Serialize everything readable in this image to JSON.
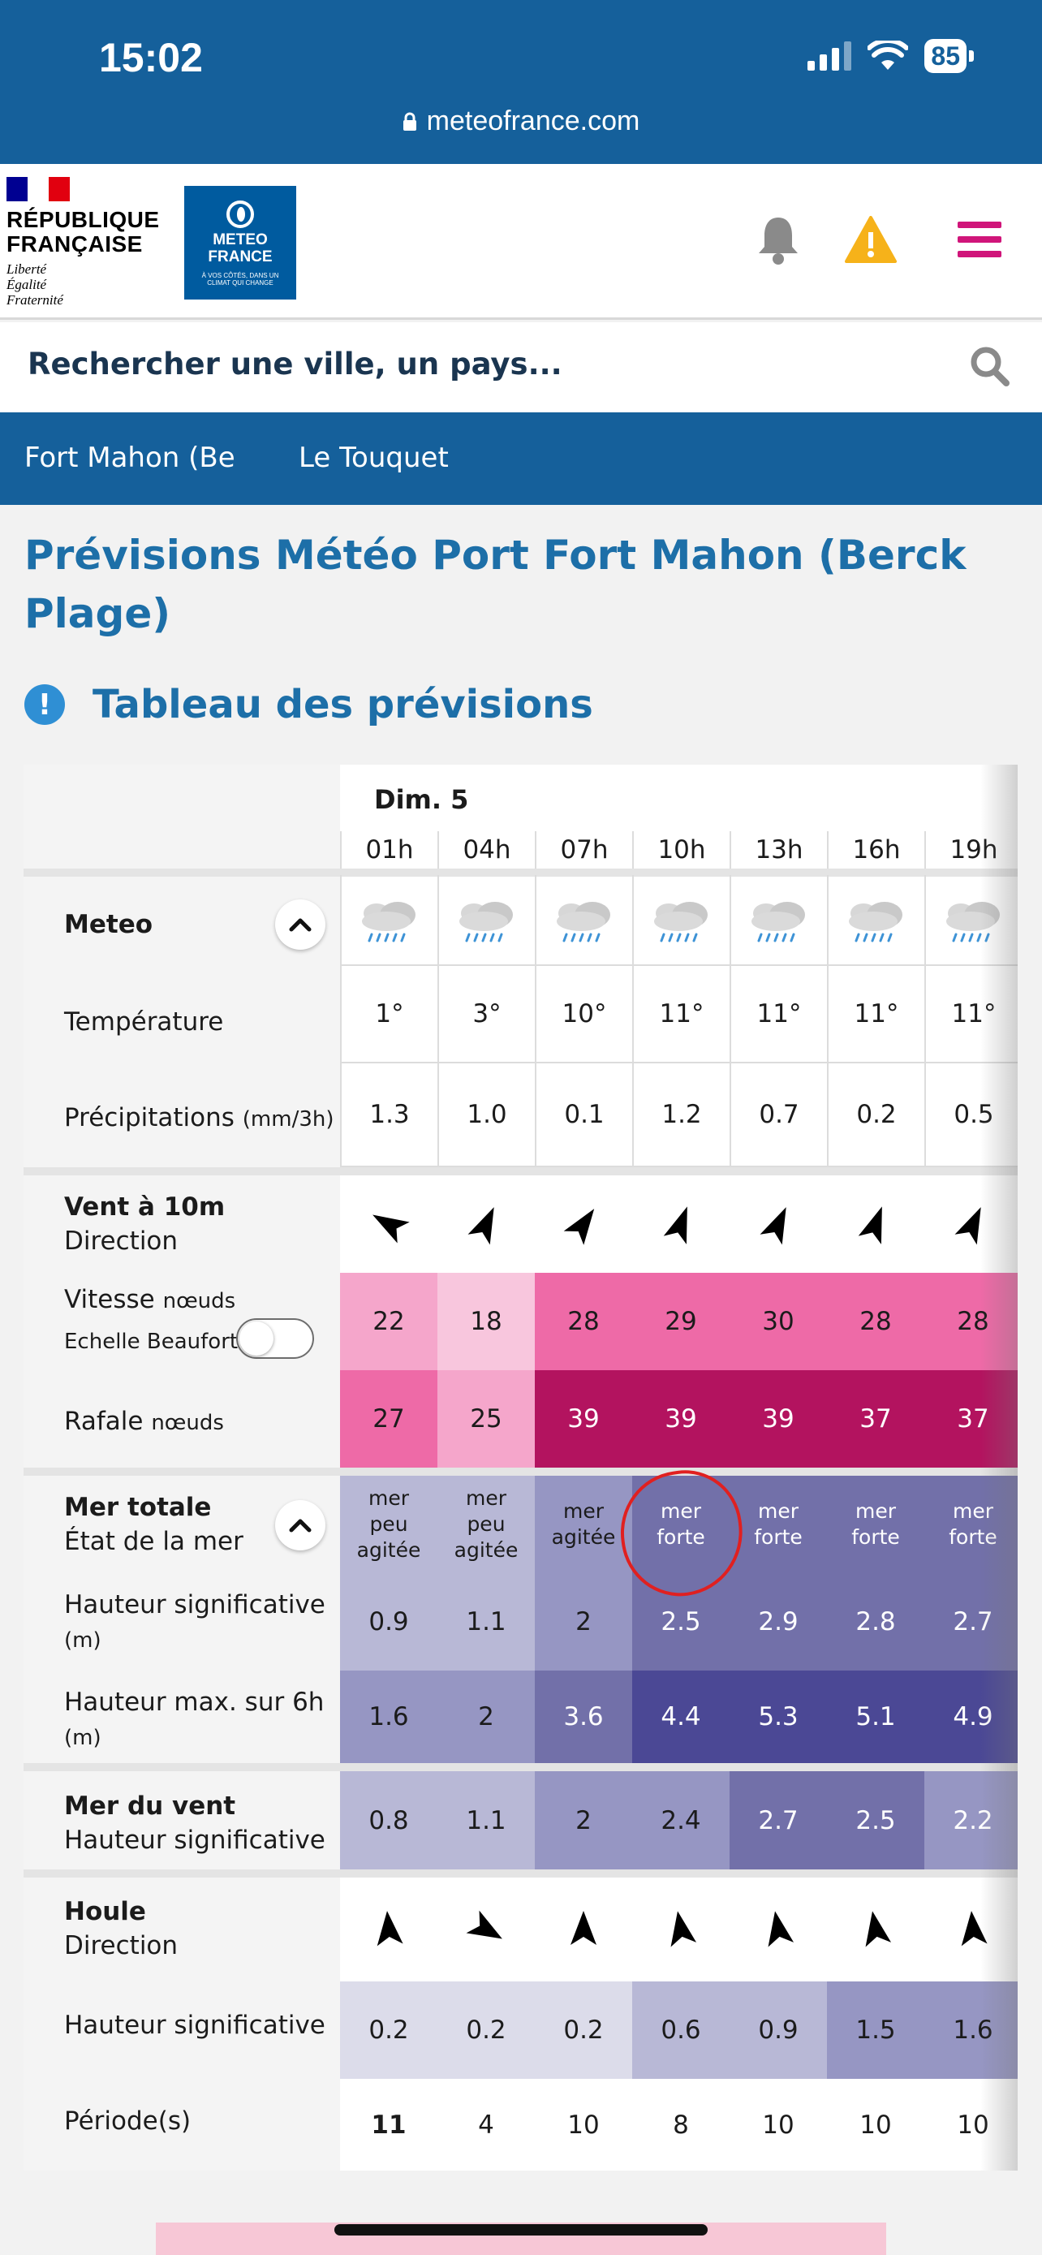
{
  "status": {
    "time": "15:02",
    "battery": "85"
  },
  "browser": {
    "url": "meteofrance.com"
  },
  "header": {
    "republique": "RÉPUBLIQUE FRANÇAISE",
    "motto": [
      "Liberté",
      "Égalité",
      "Fraternité"
    ],
    "logo_name": "METEO FRANCE",
    "logo_tagline": "À VOS CÔTÉS, DANS UN CLIMAT QUI CHANGE"
  },
  "search": {
    "placeholder": "Rechercher une ville, un pays..."
  },
  "nav": {
    "items": [
      "Fort Mahon (Be",
      "Le Touquet"
    ]
  },
  "page": {
    "title": "Prévisions Météo Port Fort Mahon (Berck Plage)",
    "section": "Tableau des prévisions"
  },
  "table": {
    "day": "Dim. 5",
    "hours": [
      "01h",
      "04h",
      "07h",
      "10h",
      "13h",
      "16h",
      "19h"
    ],
    "labels": {
      "meteo": "Meteo",
      "temperature": "Température",
      "precip": "Précipitations",
      "precip_unit": "(mm/3h)",
      "vent": "Vent à 10m",
      "direction": "Direction",
      "vitesse": "Vitesse",
      "noeuds": "nœuds",
      "beaufort": "Echelle Beaufort",
      "rafale": "Rafale",
      "mer_totale": "Mer totale",
      "etat_mer": "État de la mer",
      "hauteur_sig": "Hauteur significative",
      "unit_m": "(m)",
      "hauteur_max": "Hauteur max. sur 6h",
      "mer_vent": "Mer du vent",
      "houle": "Houle",
      "periode": "Période(s)"
    },
    "temperature": [
      "1°",
      "3°",
      "10°",
      "11°",
      "11°",
      "11°",
      "11°"
    ],
    "precipitation": [
      "1.3",
      "1.0",
      "0.1",
      "1.2",
      "0.7",
      "0.2",
      "0.5"
    ],
    "wind_dir_deg": [
      300,
      25,
      35,
      20,
      25,
      20,
      25
    ],
    "wind_speed": [
      "22",
      "18",
      "28",
      "29",
      "30",
      "28",
      "28"
    ],
    "wind_gust": [
      "27",
      "25",
      "39",
      "39",
      "39",
      "37",
      "37"
    ],
    "sea_state": [
      [
        "mer",
        "peu",
        "agitée"
      ],
      [
        "mer",
        "peu",
        "agitée"
      ],
      [
        "mer",
        "agitée"
      ],
      [
        "mer",
        "forte"
      ],
      [
        "mer",
        "forte"
      ],
      [
        "mer",
        "forte"
      ],
      [
        "mer",
        "forte"
      ]
    ],
    "sea_sig_height": [
      "0.9",
      "1.1",
      "2",
      "2.5",
      "2.9",
      "2.8",
      "2.7"
    ],
    "sea_max_height": [
      "1.6",
      "2",
      "3.6",
      "4.4",
      "5.3",
      "5.1",
      "4.9"
    ],
    "wind_sea_height": [
      "0.8",
      "1.1",
      "2",
      "2.4",
      "2.7",
      "2.5",
      "2.2"
    ],
    "swell_dir_deg": [
      85,
      210,
      90,
      80,
      80,
      80,
      85
    ],
    "swell_height": [
      "0.2",
      "0.2",
      "0.2",
      "0.6",
      "0.9",
      "1.5",
      "1.6"
    ],
    "swell_period": [
      "11",
      "4",
      "10",
      "8",
      "10",
      "10",
      "10"
    ]
  },
  "colors": {
    "brand_blue": "#15609b",
    "title_blue": "#1d6fa8",
    "warning": "#f6b21a",
    "menu": "#d0157a",
    "speed": [
      "#f5a6cb",
      "#f8c6dd",
      "#ee6aa7",
      "#ee6aa7",
      "#ee6aa7",
      "#ee6aa7",
      "#ee6aa7"
    ],
    "gust": [
      "#ee6aa7",
      "#f5a6cb",
      "#b3135f",
      "#b3135f",
      "#b3135f",
      "#b3135f",
      "#b3135f"
    ],
    "sea_state_bg": [
      "#b8b8d6",
      "#b8b8d6",
      "#9696c3",
      "#7270a9",
      "#7270a9",
      "#7270a9",
      "#7270a9"
    ],
    "sig_bg": [
      "#b8b8d6",
      "#b8b8d6",
      "#9696c3",
      "#7270a9",
      "#7270a9",
      "#7270a9",
      "#7270a9"
    ],
    "max_bg": [
      "#9696c3",
      "#9696c3",
      "#7270a9",
      "#4b4895",
      "#4b4895",
      "#4b4895",
      "#4b4895"
    ],
    "windsea_bg": [
      "#b8b8d6",
      "#b8b8d6",
      "#9696c3",
      "#9696c3",
      "#7270a9",
      "#7270a9",
      "#9696c3"
    ],
    "swell_bg": [
      "#dcdcea",
      "#dcdcea",
      "#dcdcea",
      "#b8b8d6",
      "#b8b8d6",
      "#9696c3",
      "#9696c3"
    ]
  }
}
